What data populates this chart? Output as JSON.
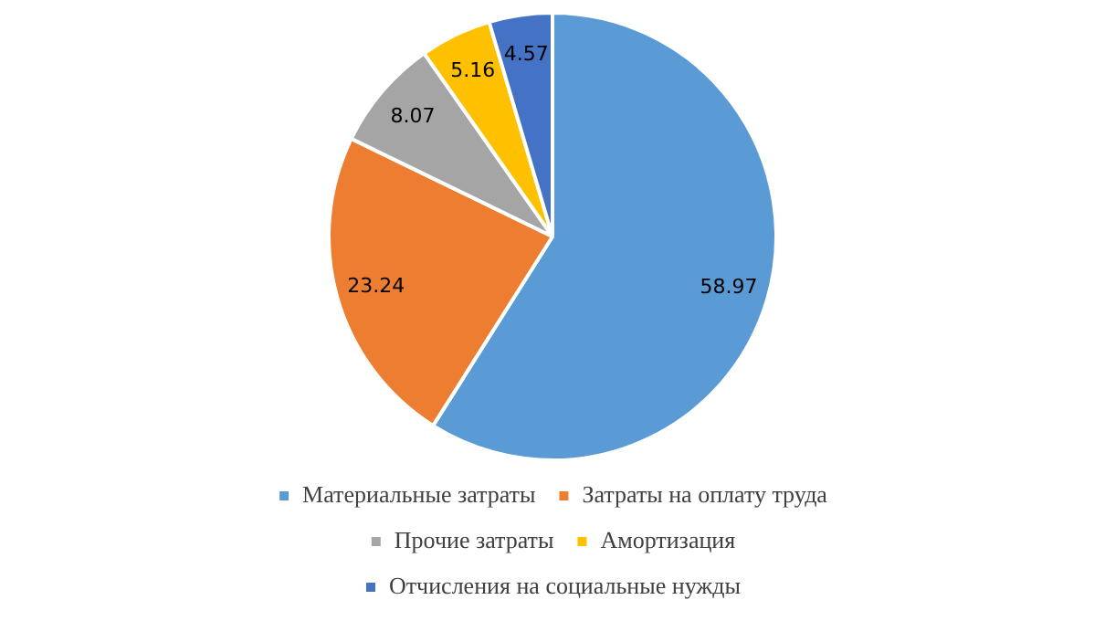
{
  "chart_data": {
    "type": "pie",
    "categories": [
      "Материальные затраты",
      "Затраты на оплату труда",
      "Прочие затраты",
      "Амортизация",
      "Отчисления на социальные нужды"
    ],
    "values": [
      58.97,
      23.24,
      8.07,
      5.16,
      4.57
    ],
    "colors": [
      "#5b9bd5",
      "#ed7d31",
      "#a5a5a5",
      "#ffc000",
      "#4472c4"
    ],
    "data_labels": true,
    "legend": "bottom"
  }
}
